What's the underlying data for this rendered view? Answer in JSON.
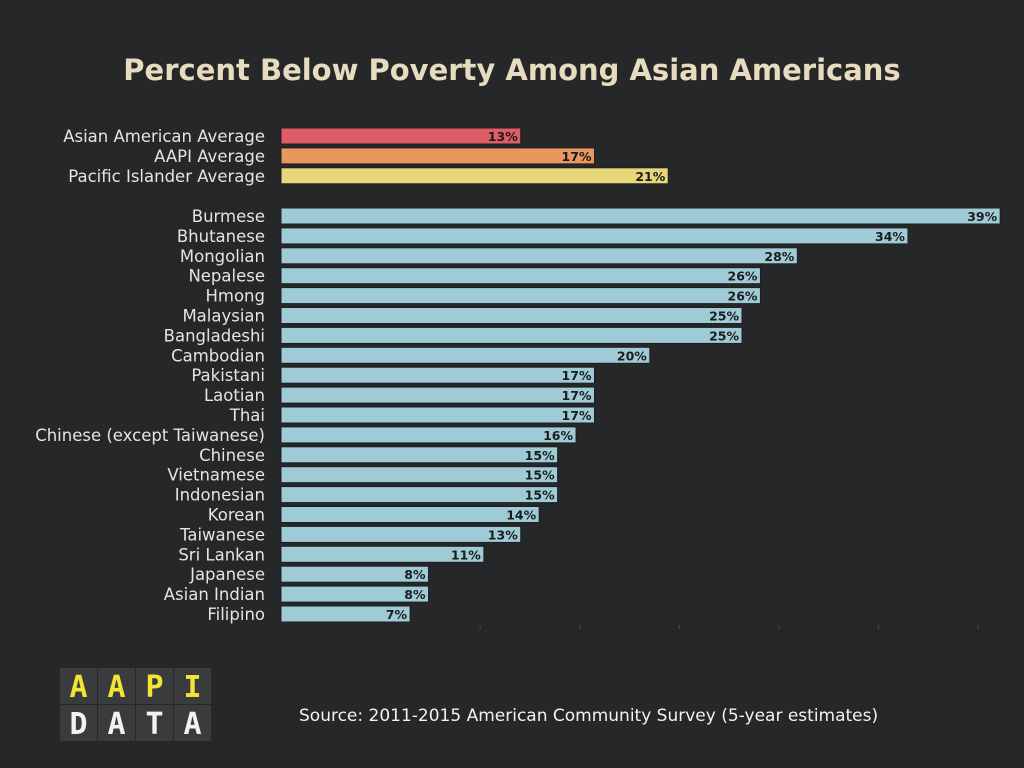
{
  "chart_data": {
    "type": "bar",
    "orientation": "horizontal",
    "title": "Percent Below Poverty Among Asian Americans",
    "xlim": [
      0,
      40
    ],
    "grid": false,
    "groups": [
      {
        "color": null,
        "items": [
          {
            "label": "Asian American Average",
            "value": 13,
            "display": "13%",
            "color": "#e05d68"
          },
          {
            "label": "AAPI Average",
            "value": 17,
            "display": "17%",
            "color": "#e8975e"
          },
          {
            "label": "Pacific Islander Average",
            "value": 21,
            "display": "21%",
            "color": "#e8d77a"
          }
        ]
      },
      {
        "color": "#9ecbd6",
        "items": [
          {
            "label": "Burmese",
            "value": 39,
            "display": "39%"
          },
          {
            "label": "Bhutanese",
            "value": 34,
            "display": "34%"
          },
          {
            "label": "Mongolian",
            "value": 28,
            "display": "28%"
          },
          {
            "label": "Nepalese",
            "value": 26,
            "display": "26%"
          },
          {
            "label": "Hmong",
            "value": 26,
            "display": "26%"
          },
          {
            "label": "Malaysian",
            "value": 25,
            "display": "25%"
          },
          {
            "label": "Bangladeshi",
            "value": 25,
            "display": "25%"
          },
          {
            "label": "Cambodian",
            "value": 20,
            "display": "20%"
          },
          {
            "label": "Pakistani",
            "value": 17,
            "display": "17%"
          },
          {
            "label": "Laotian",
            "value": 17,
            "display": "17%"
          },
          {
            "label": "Thai",
            "value": 17,
            "display": "17%"
          },
          {
            "label": "Chinese (except Taiwanese)",
            "value": 16,
            "display": "16%"
          },
          {
            "label": "Chinese",
            "value": 15,
            "display": "15%"
          },
          {
            "label": "Vietnamese",
            "value": 15,
            "display": "15%"
          },
          {
            "label": "Indonesian",
            "value": 15,
            "display": "15%"
          },
          {
            "label": "Korean",
            "value": 14,
            "display": "14%"
          },
          {
            "label": "Taiwanese",
            "value": 13,
            "display": "13%"
          },
          {
            "label": "Sri Lankan",
            "value": 11,
            "display": "11%"
          },
          {
            "label": "Japanese",
            "value": 8,
            "display": "8%"
          },
          {
            "label": "Asian Indian",
            "value": 8,
            "display": "8%"
          },
          {
            "label": "Filipino",
            "value": 7,
            "display": "7%"
          }
        ]
      }
    ],
    "source": "Source: 2011-2015 American Community Survey (5-year estimates)"
  },
  "logo": {
    "row1": [
      "A",
      "A",
      "P",
      "I"
    ],
    "row2": [
      "D",
      "A",
      "T",
      "A"
    ],
    "row1_color": "#f3e534",
    "row2_color": "#f2f2f2",
    "cell_color": "#3a3b3d"
  }
}
